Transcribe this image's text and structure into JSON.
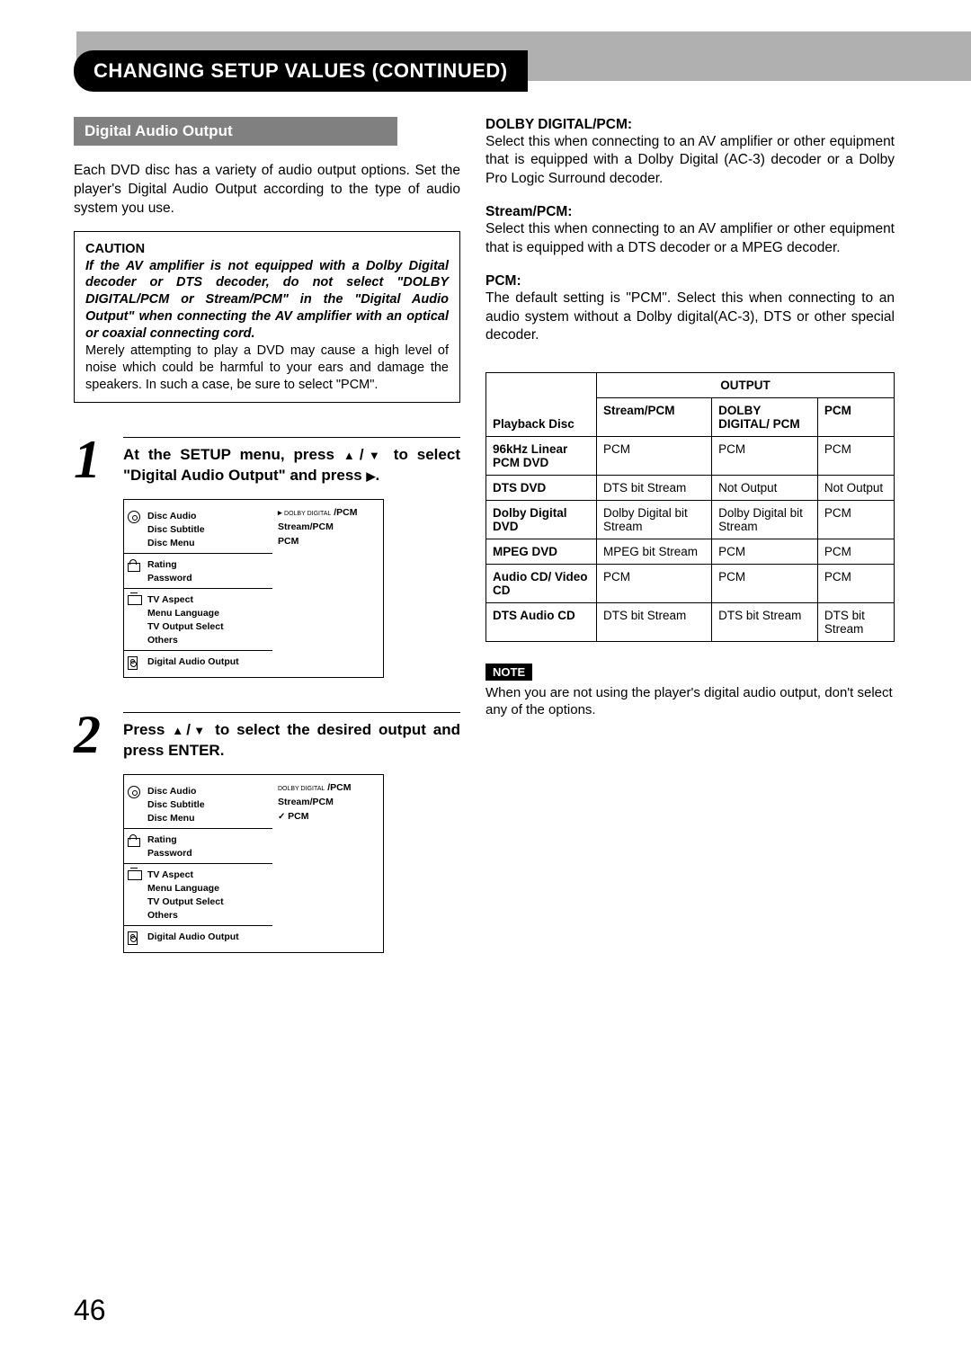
{
  "header": {
    "title": "CHANGING SETUP VALUES (CONTINUED)"
  },
  "section": {
    "title": "Digital Audio Output",
    "intro": "Each DVD disc has a variety of audio output options. Set the player's Digital Audio Output according to the type of audio system you use."
  },
  "caution": {
    "label": "CAUTION",
    "warning": "If the AV amplifier is not equipped with a Dolby Digital decoder or DTS decoder, do not select \"DOLBY DIGITAL/PCM or Stream/PCM\" in the \"Digital Audio Output\" when connecting the AV amplifier with an optical or coaxial connecting cord.",
    "followup": "Merely attempting to play a DVD may cause a high level of noise which could be harmful to your ears and damage the speakers. In such a case, be sure to select \"PCM\"."
  },
  "step1": {
    "num": "1",
    "text_a": "At the SETUP menu, press ",
    "text_b": " to select \"Digital Audio Output\" and press ",
    "text_c": "."
  },
  "step2": {
    "num": "2",
    "text_a": "Press ",
    "text_b": " to select the desired output and press ENTER."
  },
  "menu": {
    "disc_audio": "Disc Audio",
    "disc_subtitle": "Disc Subtitle",
    "disc_menu": "Disc Menu",
    "rating": "Rating",
    "password": "Password",
    "tv_aspect": "TV Aspect",
    "menu_language": "Menu Language",
    "tv_output_select": "TV Output Select",
    "others": "Others",
    "digital_audio_output": "Digital Audio Output",
    "opt_dolby": "/PCM",
    "opt_dolby_prefix": "DOLBY DIGITAL",
    "opt_stream": "Stream/PCM",
    "opt_pcm": "PCM"
  },
  "options": {
    "dolby": {
      "label": "DOLBY DIGITAL/PCM:",
      "text": "Select this when connecting to an AV amplifier or other equipment that is equipped with a Dolby Digital (AC-3) decoder or a Dolby Pro Logic Surround decoder."
    },
    "stream": {
      "label": "Stream/PCM:",
      "text": "Select this when connecting to an AV amplifier or other equipment that is equipped with a DTS decoder or a MPEG decoder."
    },
    "pcm": {
      "label": "PCM:",
      "text": "The default setting is \"PCM\". Select this when connecting to an audio system without a Dolby digital(AC-3), DTS or other special decoder."
    }
  },
  "table": {
    "output_header": "OUTPUT",
    "col_playback": "Playback Disc",
    "col_stream": "Stream/PCM",
    "col_dolby": "DOLBY DIGITAL/ PCM",
    "col_pcm": "PCM",
    "rows": [
      {
        "label": "96kHz Linear PCM DVD",
        "c1": "PCM",
        "c2": "PCM",
        "c3": "PCM"
      },
      {
        "label": "DTS DVD",
        "c1": "DTS bit Stream",
        "c2": "Not Output",
        "c3": "Not Output"
      },
      {
        "label": "Dolby Digital DVD",
        "c1": "Dolby Digital bit Stream",
        "c2": "Dolby Digital bit Stream",
        "c3": "PCM"
      },
      {
        "label": "MPEG DVD",
        "c1": "MPEG bit Stream",
        "c2": "PCM",
        "c3": "PCM"
      },
      {
        "label": "Audio CD/ Video CD",
        "c1": "PCM",
        "c2": "PCM",
        "c3": "PCM"
      },
      {
        "label": "DTS Audio CD",
        "c1": "DTS bit Stream",
        "c2": "DTS bit Stream",
        "c3": "DTS bit Stream"
      }
    ]
  },
  "note": {
    "label": "NOTE",
    "text": "When you are not using the player's digital audio output, don't select any of the options."
  },
  "page": "46",
  "colors": {
    "header_bar": "#b0b0b0",
    "section_bar": "#808080",
    "black": "#000000"
  }
}
